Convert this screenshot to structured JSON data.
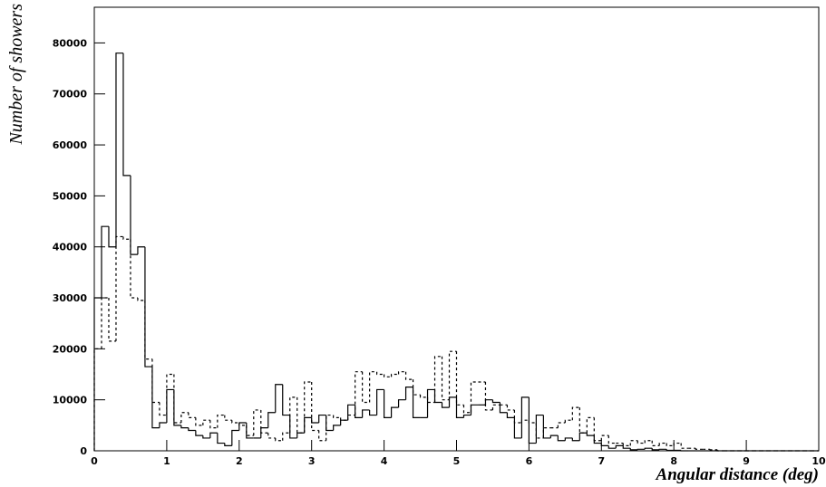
{
  "chart_data": {
    "type": "histogram",
    "x_label": "Angular distance (deg)",
    "y_label": "Number of showers",
    "bins": [
      0,
      0.1,
      0.2,
      0.3,
      0.4,
      0.5,
      0.6,
      0.7,
      0.8,
      0.9,
      1,
      1.1,
      1.2,
      1.3,
      1.4,
      1.5,
      1.6,
      1.7,
      1.8,
      1.9,
      2,
      2.1,
      2.2,
      2.3,
      2.4,
      2.5,
      2.6,
      2.7,
      2.8,
      2.9,
      3,
      3.1,
      3.2,
      3.3,
      3.4,
      3.5,
      3.6,
      3.7,
      3.8,
      3.9,
      4,
      4.1,
      4.2,
      4.3,
      4.4,
      4.5,
      4.6,
      4.7,
      4.8,
      4.9,
      5,
      5.1,
      5.2,
      5.3,
      5.4,
      5.5,
      5.6,
      5.7,
      5.8,
      5.9,
      6,
      6.1,
      6.2,
      6.3,
      6.4,
      6.5,
      6.6,
      6.7,
      6.8,
      6.9,
      7,
      7.1,
      7.2,
      7.3,
      7.4,
      7.5,
      7.6,
      7.7,
      7.8,
      7.9,
      8,
      8.1,
      8.2,
      8.3,
      8.4,
      8.5,
      8.6,
      8.7,
      8.8,
      8.9,
      9,
      9.1,
      9.2,
      9.3,
      9.4,
      9.5,
      9.6,
      9.7,
      9.8,
      9.9,
      10
    ],
    "series": [
      {
        "color": "#000000",
        "linestyle": "solid",
        "values": [
          30000,
          44000,
          40000,
          78000,
          54000,
          38500,
          40000,
          16500,
          4500,
          5500,
          12000,
          5000,
          4500,
          4000,
          3000,
          2500,
          3500,
          1500,
          1000,
          4000,
          5500,
          2500,
          2500,
          4500,
          7500,
          13000,
          7000,
          2500,
          3500,
          6500,
          5500,
          7000,
          4000,
          5000,
          6000,
          9000,
          6500,
          8000,
          7000,
          12000,
          6500,
          8500,
          10000,
          12500,
          6500,
          6500,
          12000,
          9500,
          8500,
          10500,
          6500,
          7000,
          9000,
          9000,
          10000,
          9500,
          7500,
          6500,
          2500,
          10500,
          1500,
          7000,
          2500,
          3000,
          2000,
          2500,
          2000,
          3500,
          3000,
          1500,
          1000,
          500,
          1000,
          500,
          200,
          300,
          500,
          200,
          300,
          100,
          100,
          0,
          0,
          0,
          0,
          0,
          0,
          0,
          0,
          0,
          0,
          0,
          0,
          0,
          0,
          0,
          0,
          0,
          0,
          0
        ]
      },
      {
        "color": "#000000",
        "linestyle": "dashed",
        "values": [
          20000,
          30000,
          21500,
          42000,
          41500,
          30000,
          29500,
          18000,
          9500,
          7000,
          15000,
          5500,
          7500,
          6500,
          5000,
          6000,
          4500,
          7000,
          6000,
          5500,
          5000,
          3000,
          8000,
          3500,
          2500,
          2000,
          3500,
          10500,
          3500,
          13500,
          4000,
          2000,
          7000,
          6500,
          6000,
          7000,
          15500,
          9500,
          15500,
          15000,
          14500,
          15000,
          15500,
          14000,
          11000,
          10500,
          9500,
          18500,
          10000,
          19500,
          9000,
          7500,
          13500,
          13500,
          8000,
          9000,
          9000,
          8000,
          5500,
          6000,
          5500,
          2500,
          4500,
          4500,
          5500,
          6000,
          8500,
          3500,
          6500,
          2000,
          3000,
          1500,
          1500,
          1000,
          2000,
          1500,
          2000,
          1000,
          1500,
          1000,
          1500,
          500,
          500,
          300,
          300,
          200,
          0,
          0,
          0,
          0,
          0,
          0,
          0,
          0,
          0,
          0,
          0,
          0,
          0,
          0
        ]
      }
    ],
    "xlim": [
      0,
      10
    ],
    "ylim": [
      0,
      87000
    ],
    "xticks": [
      0,
      1,
      2,
      3,
      4,
      5,
      6,
      7,
      8,
      9,
      10
    ],
    "yticks": [
      0,
      10000,
      20000,
      30000,
      40000,
      50000,
      60000,
      70000,
      80000
    ]
  }
}
